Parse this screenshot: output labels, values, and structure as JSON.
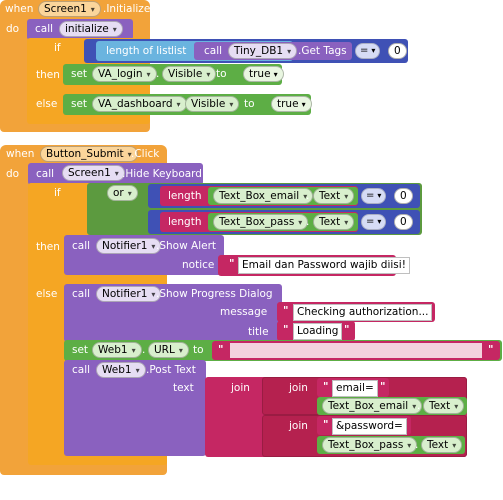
{
  "block1": {
    "when": "when",
    "component": "Screen1",
    "event": ".Initialize",
    "do": "do",
    "call": "call",
    "procedure": "initialize",
    "if": "if",
    "length_of_list": "length of list",
    "list": "list",
    "call2": "call",
    "db": "Tiny_DB1",
    "get_tags": ".Get Tags",
    "eq": "=",
    "zero": "0",
    "then": "then",
    "set1": "set",
    "set1_comp": "VA_login",
    "set1_prop": "Visible",
    "to": "to",
    "true1": "true",
    "else": "else",
    "set2": "set",
    "set2_comp": "VA_dashboard",
    "set2_prop": "Visible",
    "true2": "true"
  },
  "block2": {
    "when": "when",
    "component": "Button_Submit",
    "event": ".Click",
    "do": "do",
    "call": "call",
    "screen": "Screen1",
    "hide_keyboard": ".Hide Keyboard",
    "if": "if",
    "or": "or",
    "length1": "length",
    "email_box": "Text_Box_email",
    "text_prop": "Text",
    "eq": "=",
    "zero1": "0",
    "length2": "length",
    "pass_box": "Text_Box_pass",
    "zero2": "0",
    "then": "then",
    "call_alert": "call",
    "notifier": "Notifier1",
    "show_alert": ".Show Alert",
    "notice": "notice",
    "notice_text": "Email dan Password wajib diisi!",
    "else": "else",
    "call_progress": "call",
    "show_progress": ".Show Progress Dialog",
    "message": "message",
    "message_text": "Checking authorization...",
    "title": "title",
    "title_text": "Loading",
    "set": "set",
    "web": "Web1",
    "url_prop": "URL",
    "to": "to",
    "call_post": "call",
    "post_text": ".Post Text",
    "text_label": "text",
    "join1": "join",
    "join2": "join",
    "email_eq": "email=",
    "join3": "join",
    "password_eq": "&password="
  }
}
